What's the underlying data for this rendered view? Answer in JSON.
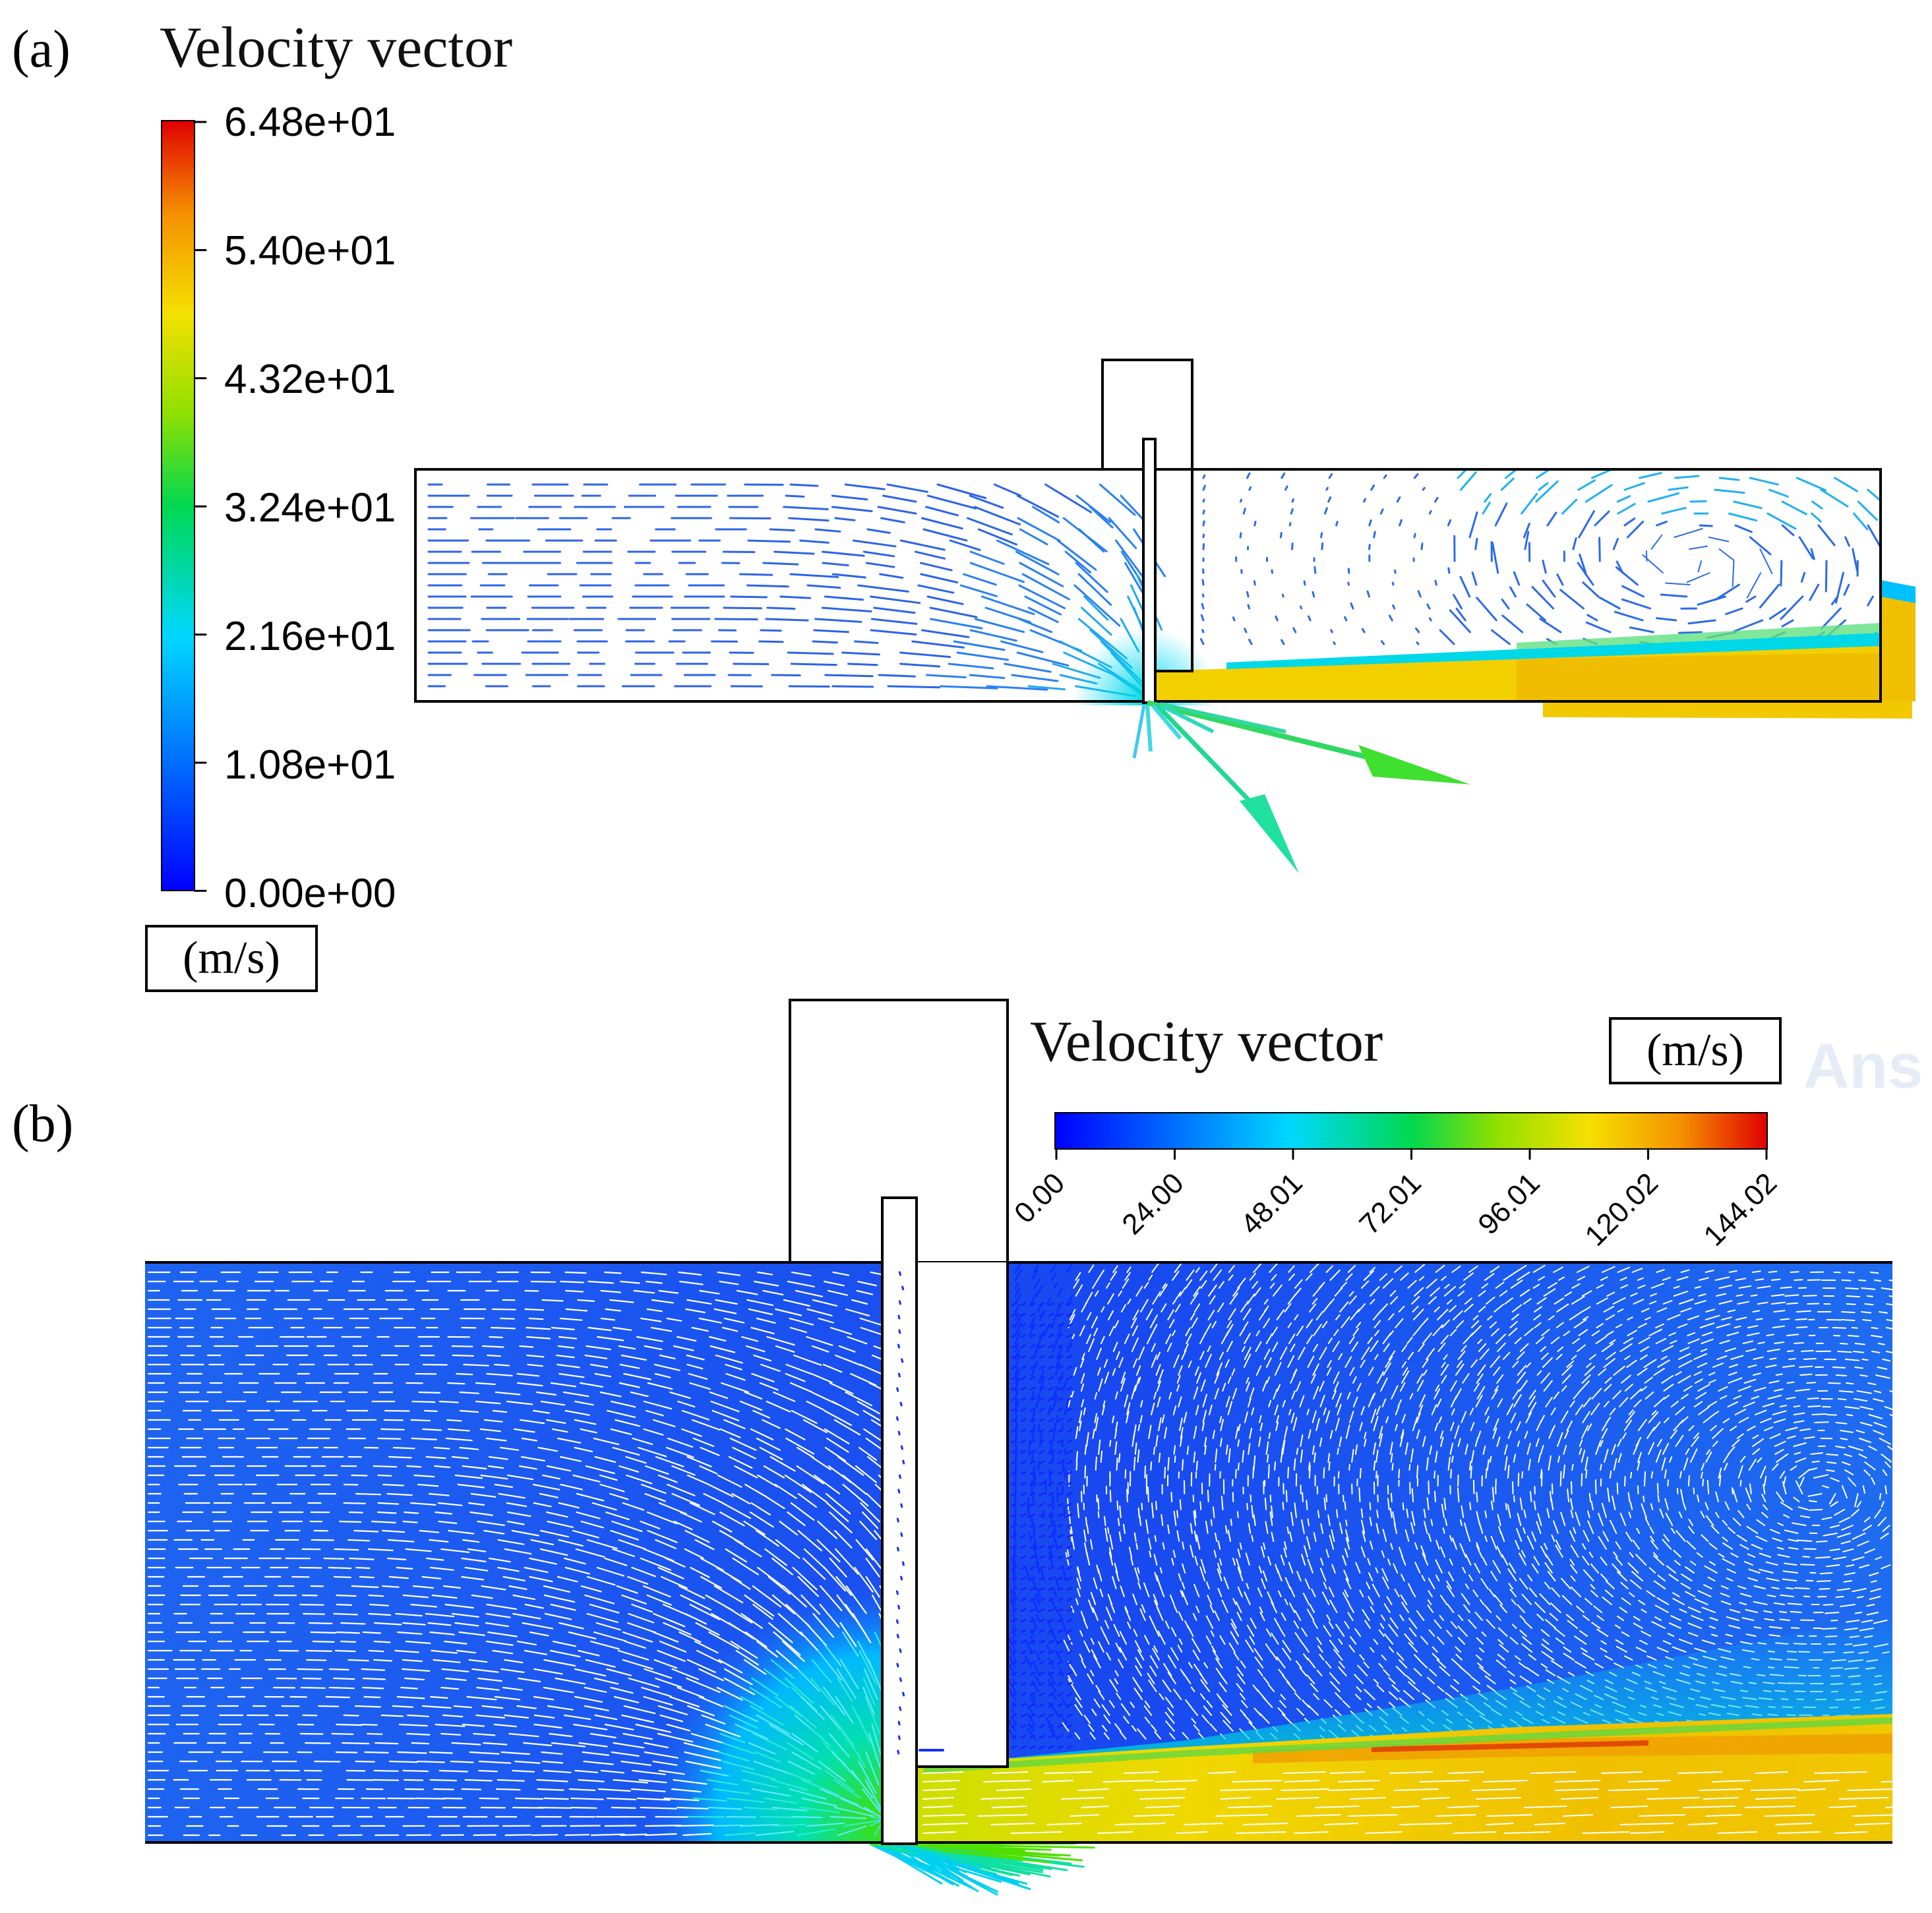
{
  "panels": [
    {
      "label": "(a)",
      "title": "Velocity vector",
      "unit": "(m/s)",
      "colorbar": {
        "orientation": "vertical",
        "ticks": [
          "6.48e+01",
          "5.40e+01",
          "4.32e+01",
          "3.24e+01",
          "2.16e+01",
          "1.08e+01",
          "0.00e+00"
        ],
        "min": 0,
        "max": 64.8
      }
    },
    {
      "label": "(b)",
      "title": "Velocity vector",
      "unit": "(m/s)",
      "colorbar": {
        "orientation": "horizontal",
        "ticks": [
          "0.00",
          "24.00",
          "48.01",
          "72.01",
          "96.01",
          "120.02",
          "144.02"
        ],
        "min": 0,
        "max": 144.02
      }
    }
  ],
  "colormap": [
    "#0000ff",
    "#0068ff",
    "#00c8ff",
    "#00e8a0",
    "#00d200",
    "#a0e000",
    "#f0e000",
    "#f5a000",
    "#e04000",
    "#d00000"
  ],
  "watermark": "Ans"
}
